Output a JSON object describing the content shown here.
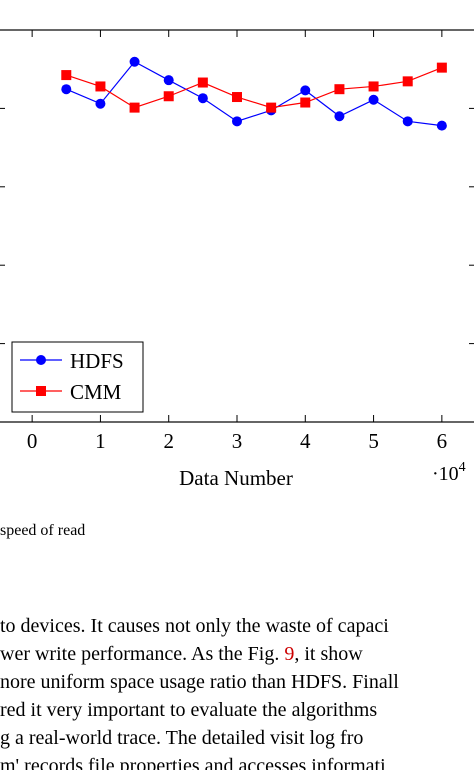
{
  "chart_data": {
    "type": "line",
    "xlabel": "Data Number",
    "x_multiplier": "·10",
    "x_multiplier_exp": "4",
    "xticks": [
      0,
      1,
      2,
      3,
      4,
      5,
      6
    ],
    "xlim": [
      -0.5,
      6.5
    ],
    "ylim": [
      0,
      1
    ],
    "legend_position": "bottom-left",
    "series": [
      {
        "name": "HDFS",
        "color": "#0000ff",
        "marker": "circle",
        "x": [
          0.5,
          1.0,
          1.5,
          2.0,
          2.5,
          3.0,
          3.5,
          4.0,
          4.5,
          5.0,
          5.5,
          6.0
        ],
        "y": [
          0.849,
          0.812,
          0.919,
          0.872,
          0.826,
          0.767,
          0.795,
          0.846,
          0.78,
          0.822,
          0.767,
          0.756
        ]
      },
      {
        "name": "CMM",
        "color": "#ff0000",
        "marker": "square",
        "x": [
          0.5,
          1.0,
          1.5,
          2.0,
          2.5,
          3.0,
          3.5,
          4.0,
          4.5,
          5.0,
          5.5,
          6.0
        ],
        "y": [
          0.885,
          0.856,
          0.802,
          0.831,
          0.866,
          0.829,
          0.802,
          0.815,
          0.849,
          0.856,
          0.869,
          0.904
        ]
      }
    ]
  },
  "caption": "speed of read",
  "body": {
    "line1": "to devices. It causes not only the waste of capaci",
    "line2_a": "wer write performance. As the Fig. ",
    "line2_ref": "9",
    "line2_b": ", it show",
    "line3": "nore uniform space usage ratio than HDFS. Finall",
    "line4": "red it very important to evaluate the algorithms",
    "line5": "g a real-world trace. The detailed visit log fro",
    "line6": "m' records file properties and accesses informati"
  }
}
